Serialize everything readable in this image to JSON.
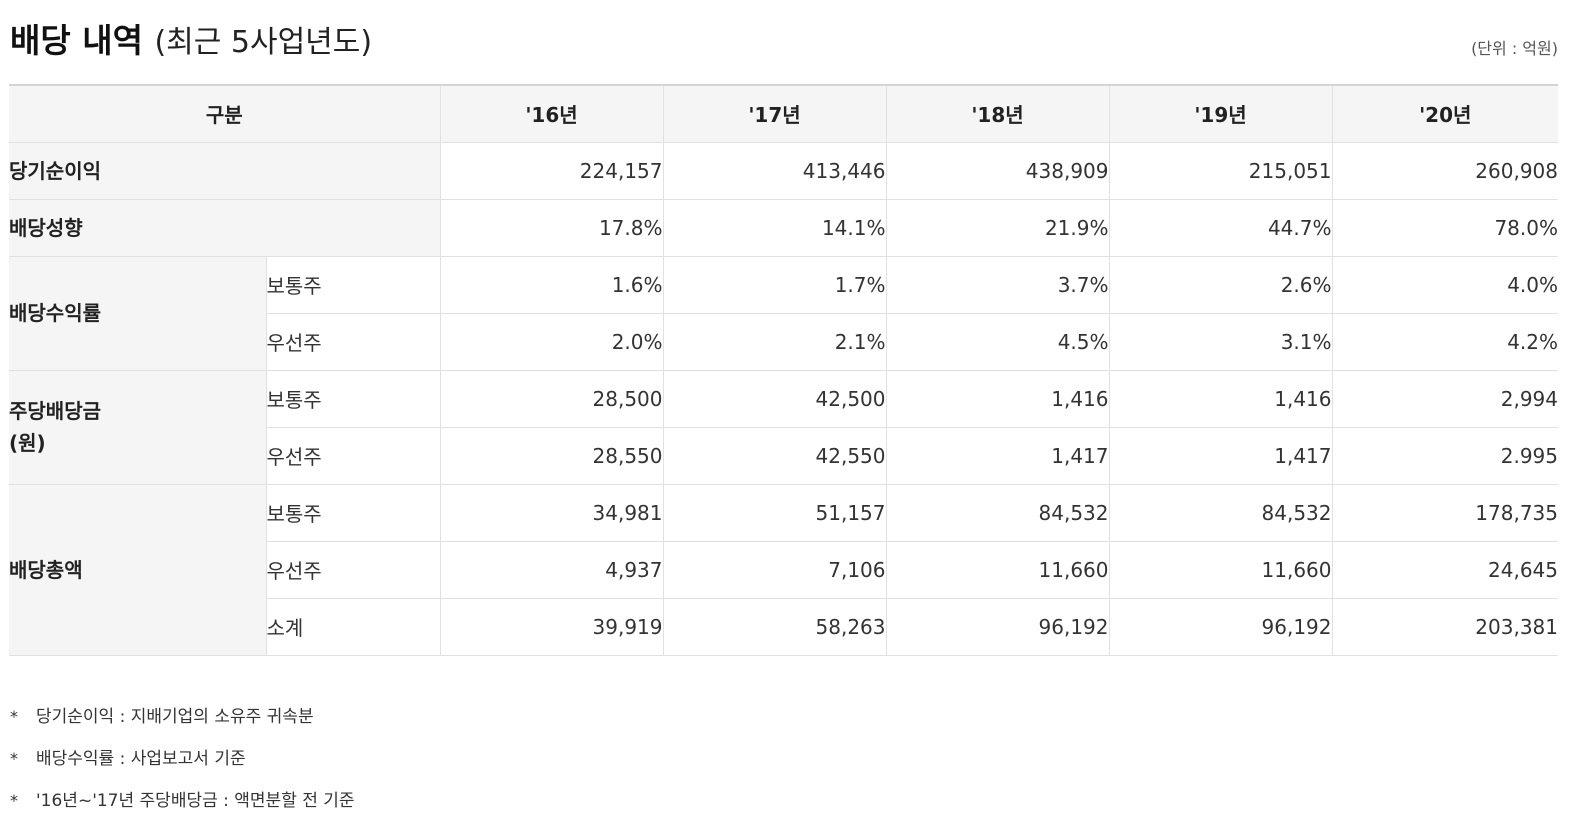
{
  "header": {
    "title": "배당 내역",
    "subtitle": "(최근 5사업년도)",
    "unit": "(단위 : 억원)"
  },
  "table": {
    "category_header": "구분",
    "years": [
      "'16년",
      "'17년",
      "'18년",
      "'19년",
      "'20년"
    ],
    "net_income": {
      "label": "당기순이익",
      "values": [
        "224,157",
        "413,446",
        "438,909",
        "215,051",
        "260,908"
      ]
    },
    "payout_ratio": {
      "label": "배당성향",
      "values": [
        "17.8%",
        "14.1%",
        "21.9%",
        "44.7%",
        "78.0%"
      ]
    },
    "dividend_yield": {
      "label": "배당수익률",
      "common": {
        "label": "보통주",
        "values": [
          "1.6%",
          "1.7%",
          "3.7%",
          "2.6%",
          "4.0%"
        ]
      },
      "preferred": {
        "label": "우선주",
        "values": [
          "2.0%",
          "2.1%",
          "4.5%",
          "3.1%",
          "4.2%"
        ]
      }
    },
    "dps": {
      "label_line1": "주당배당금",
      "label_line2": "(원)",
      "common": {
        "label": "보통주",
        "values": [
          "28,500",
          "42,500",
          "1,416",
          "1,416",
          "2,994"
        ]
      },
      "preferred": {
        "label": "우선주",
        "values": [
          "28,550",
          "42,550",
          "1,417",
          "1,417",
          "2.995"
        ]
      }
    },
    "total_dividend": {
      "label": "배당총액",
      "common": {
        "label": "보통주",
        "values": [
          "34,981",
          "51,157",
          "84,532",
          "84,532",
          "178,735"
        ]
      },
      "preferred": {
        "label": "우선주",
        "values": [
          "4,937",
          "7,106",
          "11,660",
          "11,660",
          "24,645"
        ]
      },
      "subtotal": {
        "label": "소계",
        "values": [
          "39,919",
          "58,263",
          "96,192",
          "96,192",
          "203,381"
        ]
      }
    }
  },
  "notes": [
    {
      "mark": "*",
      "text": "당기순이익 : 지배기업의 소유주 귀속분"
    },
    {
      "mark": "*",
      "text": "배당수익률 : 사업보고서 기준"
    },
    {
      "mark": "*",
      "text": "'16년~'17년 주당배당금 : 액면분할 전 기준"
    }
  ]
}
